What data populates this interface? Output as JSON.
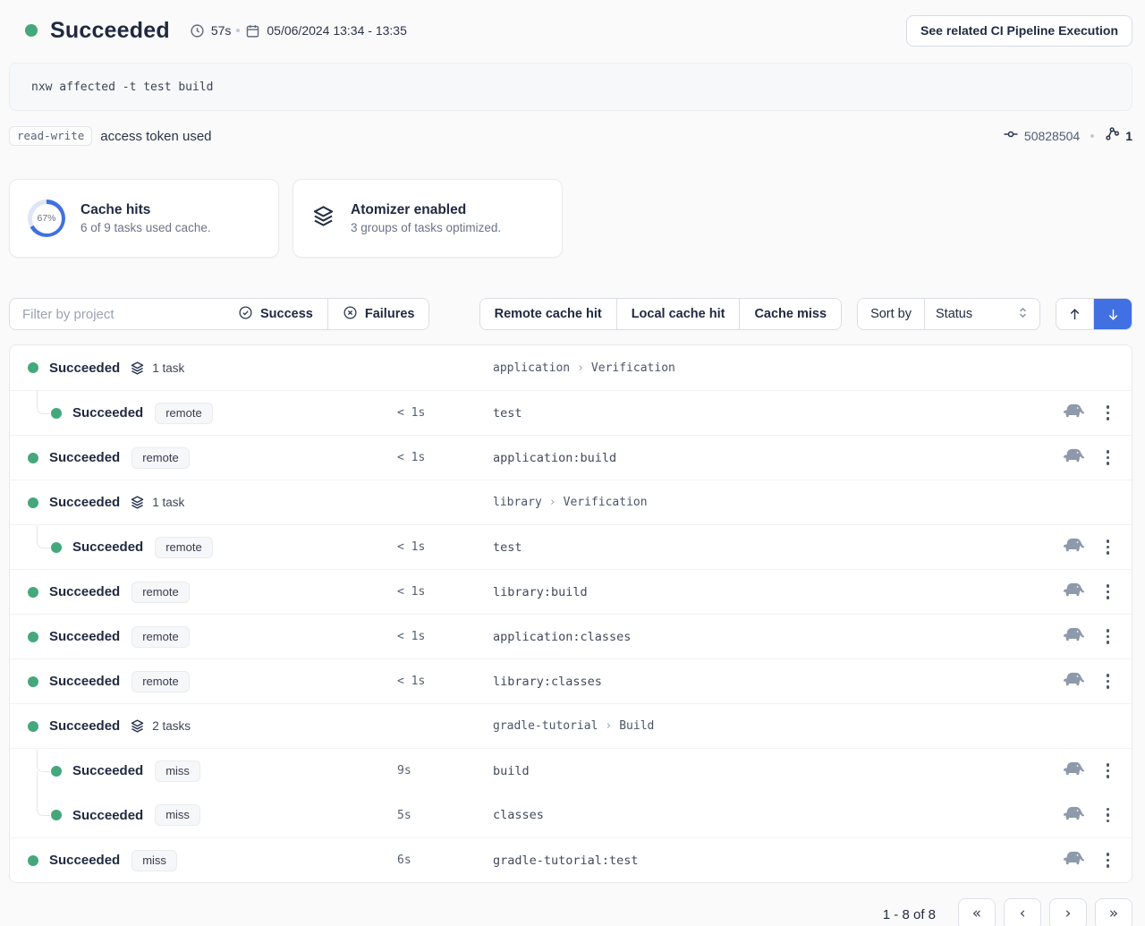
{
  "header": {
    "status": "Succeeded",
    "duration": "57s",
    "date_range": "05/06/2024 13:34 - 13:35",
    "related_button": "See related CI Pipeline Execution"
  },
  "command": "nxw affected -t test build",
  "token": {
    "badge": "read-write",
    "label": "access token used",
    "commit": "50828504",
    "branch_count": "1"
  },
  "cards": {
    "cache": {
      "title": "Cache hits",
      "subtitle": "6 of 9 tasks used cache.",
      "percent_label": "67%",
      "percent_value": 67
    },
    "atomizer": {
      "title": "Atomizer enabled",
      "subtitle": "3 groups of tasks optimized."
    }
  },
  "filters": {
    "project_placeholder": "Filter by project",
    "success": "Success",
    "failures": "Failures",
    "remote_cache_hit": "Remote cache hit",
    "local_cache_hit": "Local cache hit",
    "cache_miss": "Cache miss",
    "sort_by_label": "Sort by",
    "sort_value": "Status"
  },
  "task_list": {
    "breadcrumb_separator": "›",
    "rows": [
      {
        "kind": "group",
        "status": "Succeeded",
        "tasks_label": "1 task",
        "project": "application",
        "target": "Verification"
      },
      {
        "kind": "child",
        "status": "Succeeded",
        "badge": "remote",
        "duration": "< 1s",
        "task": "test"
      },
      {
        "kind": "top",
        "status": "Succeeded",
        "badge": "remote",
        "duration": "< 1s",
        "task": "application:build"
      },
      {
        "kind": "group",
        "status": "Succeeded",
        "tasks_label": "1 task",
        "project": "library",
        "target": "Verification"
      },
      {
        "kind": "child",
        "status": "Succeeded",
        "badge": "remote",
        "duration": "< 1s",
        "task": "test"
      },
      {
        "kind": "top",
        "status": "Succeeded",
        "badge": "remote",
        "duration": "< 1s",
        "task": "library:build"
      },
      {
        "kind": "top",
        "status": "Succeeded",
        "badge": "remote",
        "duration": "< 1s",
        "task": "application:classes"
      },
      {
        "kind": "top",
        "status": "Succeeded",
        "badge": "remote",
        "duration": "< 1s",
        "task": "library:classes"
      },
      {
        "kind": "group",
        "status": "Succeeded",
        "tasks_label": "2 tasks",
        "project": "gradle-tutorial",
        "target": "Build"
      },
      {
        "kind": "child",
        "status": "Succeeded",
        "badge": "miss",
        "duration": "9s",
        "task": "build",
        "cont": true
      },
      {
        "kind": "child",
        "status": "Succeeded",
        "badge": "miss",
        "duration": "5s",
        "task": "classes",
        "no_border": true
      },
      {
        "kind": "top",
        "status": "Succeeded",
        "badge": "miss",
        "duration": "6s",
        "task": "gradle-tutorial:test"
      }
    ]
  },
  "pagination": {
    "range": "1 - 8 of 8",
    "first": "«",
    "prev": "‹",
    "next": "›",
    "last": "»"
  },
  "colors": {
    "green": "#44a87c",
    "blue": "#4070e2",
    "donut_track": "#dfe4f6"
  }
}
